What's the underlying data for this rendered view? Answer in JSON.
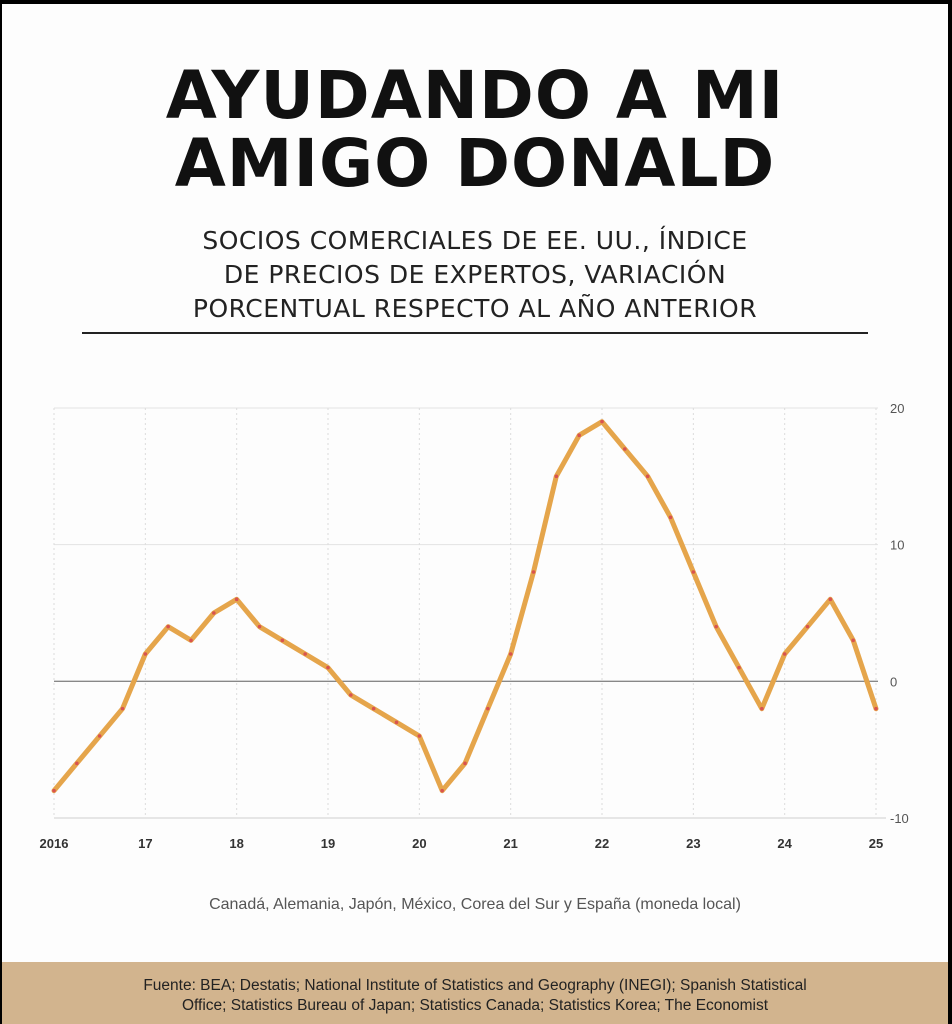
{
  "header": {
    "title_lines": [
      "AYUDANDO A MI",
      "AMIGO DONALD"
    ],
    "subtitle_lines": [
      "SOCIOS COMERCIALES DE EE. UU., ÍNDICE",
      "DE PRECIOS DE EXPERTOS, VARIACIÓN",
      "PORCENTUAL RESPECTO AL AÑO ANTERIOR"
    ]
  },
  "chart_data": {
    "type": "line",
    "x_tick_labels": [
      "2016",
      "17",
      "18",
      "19",
      "20",
      "21",
      "22",
      "23",
      "24",
      "25"
    ],
    "y_tick_labels": [
      "20",
      "10",
      "0",
      "-10"
    ],
    "y_ticks": [
      20,
      10,
      0,
      -10
    ],
    "xlim": [
      2016,
      2025
    ],
    "ylim": [
      -10,
      20
    ],
    "y_axis_position": "right",
    "grid": true,
    "zero_line": true,
    "line_color": "#e5a54b",
    "marker_color": "#d9534f",
    "series": [
      {
        "x": [
          2016.0,
          2016.25,
          2016.5,
          2016.75,
          2017.0,
          2017.25,
          2017.5,
          2017.75,
          2018.0,
          2018.25,
          2018.5,
          2018.75,
          2019.0,
          2019.25,
          2019.5,
          2019.75,
          2020.0,
          2020.25,
          2020.5,
          2020.75,
          2021.0,
          2021.25,
          2021.5,
          2021.75,
          2022.0,
          2022.25,
          2022.5,
          2022.75,
          2023.0,
          2023.25,
          2023.5,
          2023.75,
          2024.0,
          2024.25,
          2024.5,
          2024.75,
          2025.0
        ],
        "values": [
          -8,
          -6,
          -4,
          -2,
          2,
          4,
          3,
          5,
          6,
          4,
          3,
          2,
          1,
          -1,
          -2,
          -3,
          -4,
          -8,
          -6,
          -2,
          2,
          8,
          15,
          18,
          19,
          17,
          15,
          12,
          8,
          4,
          1,
          -2,
          2,
          4,
          6,
          3,
          -2
        ]
      }
    ]
  },
  "caption": "Canadá, Alemania, Japón, México, Corea del Sur y España (moneda local)",
  "footer": {
    "lines": [
      "Fuente: BEA; Destatis; National Institute of Statistics and Geography (INEGI); Spanish Statistical",
      "Office; Statistics Bureau of Japan; Statistics Canada; Statistics Korea; The Economist"
    ]
  }
}
